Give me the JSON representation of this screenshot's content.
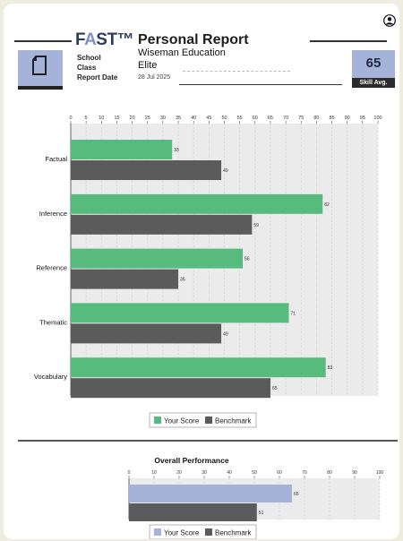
{
  "header": {
    "brand_main": "F",
    "brand_accent": "A",
    "brand_rest": "ST™",
    "report_title": "Personal Report",
    "school_label": "School",
    "class_label": "Class",
    "date_label": "Report Date",
    "school_value": "Wiseman Education",
    "class_value": "Elite",
    "date_value": "28 Jul 2025",
    "skill_value": "65",
    "skill_label": "Skill Avg."
  },
  "colors": {
    "your_score": "#57bb7e",
    "benchmark": "#5b5b5b",
    "overall_score": "#a6b3d9",
    "panel": "#ebebeb"
  },
  "chart_data": [
    {
      "type": "bar",
      "orientation": "horizontal",
      "categories": [
        "Factual",
        "Inference",
        "Reference",
        "Thematic",
        "Vocabulary"
      ],
      "series": [
        {
          "name": "Your Score",
          "values": [
            33,
            82,
            56,
            71,
            83
          ]
        },
        {
          "name": "Benchmark",
          "values": [
            49,
            59,
            35,
            49,
            65
          ]
        }
      ],
      "xlim": [
        0,
        100
      ],
      "xticks": [
        0,
        5,
        10,
        15,
        20,
        25,
        30,
        35,
        40,
        45,
        50,
        55,
        60,
        65,
        70,
        75,
        80,
        85,
        90,
        95,
        100
      ],
      "legend_position": "bottom",
      "grid": true
    },
    {
      "type": "bar",
      "orientation": "horizontal",
      "title": "Overall Performance",
      "categories": [
        ""
      ],
      "series": [
        {
          "name": "Your Score",
          "values": [
            65
          ]
        },
        {
          "name": "Benchmark",
          "values": [
            51
          ]
        }
      ],
      "xlim": [
        0,
        100
      ],
      "xticks": [
        0,
        10,
        20,
        30,
        40,
        50,
        60,
        70,
        80,
        90,
        100
      ],
      "legend_position": "bottom",
      "grid": true
    }
  ]
}
